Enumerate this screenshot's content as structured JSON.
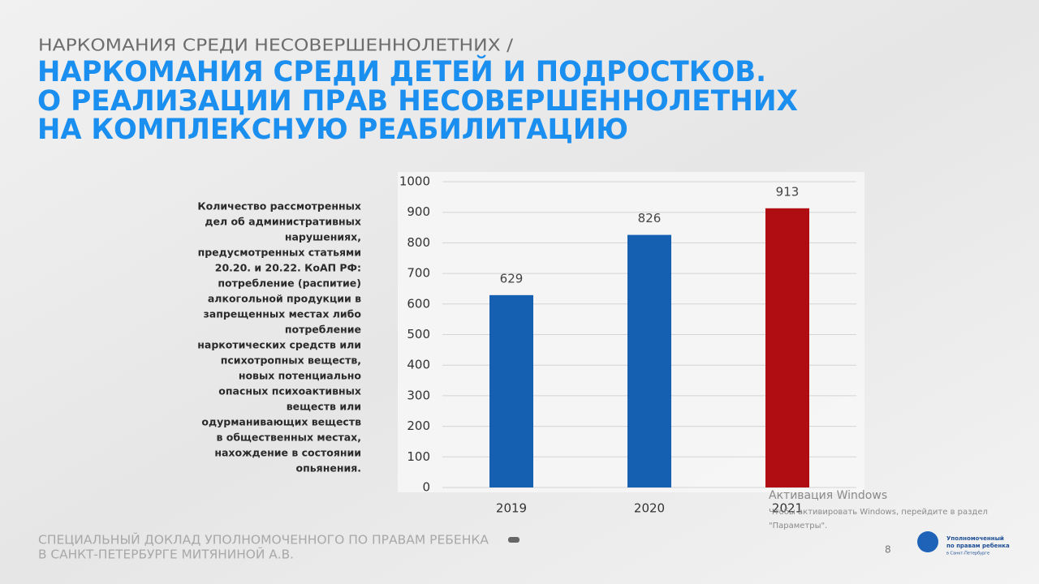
{
  "header": {
    "subtitle": "НАРКОМАНИЯ СРЕДИ НЕСОВЕРШЕННОЛЕТНИХ /",
    "title_lines": [
      "НАРКОМАНИЯ СРЕДИ ДЕТЕЙ И ПОДРОСТКОВ.",
      "О РЕАЛИЗАЦИИ ПРАВ НЕСОВЕРШЕННОЛЕТНИХ",
      "НА КОМПЛЕКСНУЮ РЕАБИЛИТАЦИЮ"
    ]
  },
  "description": {
    "lines": [
      "Количество рассмотренных",
      "дел об административных",
      "нарушениях,",
      "предусмотренных статьями",
      "20.20. и 20.22. КоАП РФ:",
      "потребление (распитие)",
      "алкогольной продукции в",
      "запрещенных местах либо",
      "потребление",
      "наркотических средств или",
      "психотропных веществ,",
      "новых потенциально",
      "опасных психоактивных",
      "веществ или",
      "одурманивающих веществ",
      "в общественных местах,",
      "нахождение в состоянии",
      "опьянения."
    ]
  },
  "chart_data": {
    "type": "bar",
    "categories": [
      "2019",
      "2020",
      "2021"
    ],
    "values": [
      629,
      826,
      913
    ],
    "colors": [
      "#1560b0",
      "#1560b0",
      "#b00d12"
    ],
    "ylim": [
      0,
      1000
    ],
    "yticks": [
      0,
      100,
      200,
      300,
      400,
      500,
      600,
      700,
      800,
      900,
      1000
    ],
    "grid": true
  },
  "footer": {
    "lines": [
      "СПЕЦИАЛЬНЫЙ ДОКЛАД УПОЛНОМОЧЕННОГО ПО ПРАВАМ РЕБЕНКА",
      "В САНКТ-ПЕТЕРБУРГЕ МИТЯНИНОЙ А.В."
    ],
    "page": "8",
    "logo_lines": [
      "Уполномоченный",
      "по правам ребенка",
      "в Санкт-Петербурге"
    ]
  },
  "watermark": {
    "title": "Активация Windows",
    "lines": [
      "Чтобы активировать Windows, перейдите в раздел",
      "\"Параметры\"."
    ]
  }
}
